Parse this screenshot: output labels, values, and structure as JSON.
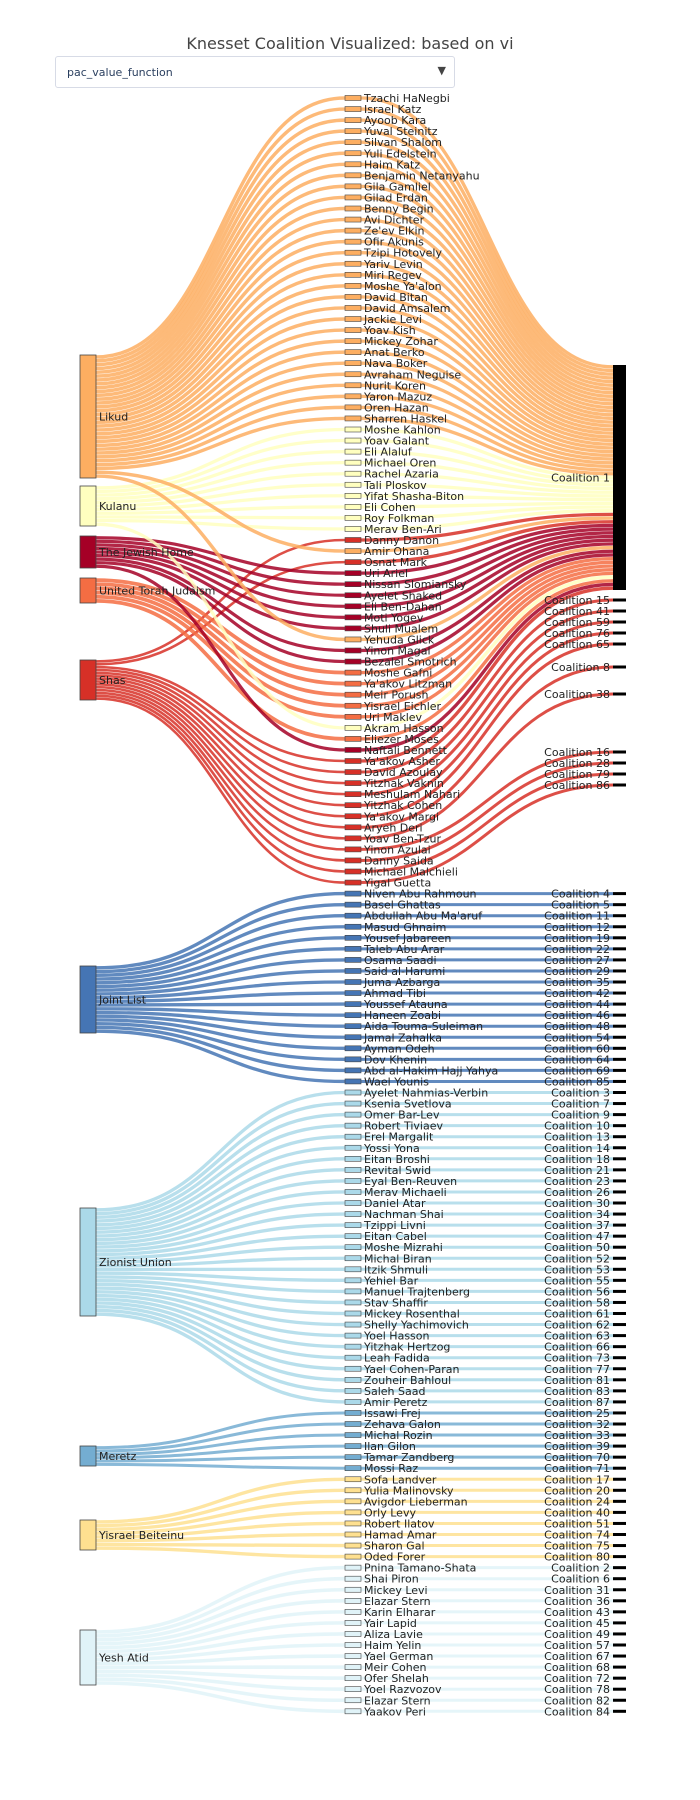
{
  "title": "Knesset Coalition Visualized: based on vi",
  "dropdown": {
    "selected": "pac_value_function"
  },
  "chart_data": {
    "type": "sankey",
    "parties": [
      {
        "name": "Likud",
        "color": "#fdae61",
        "members": [
          "Tzachi HaNegbi",
          "Israel Katz",
          "Ayoob Kara",
          "Yuval Steinitz",
          "Silvan Shalom",
          "Yuli Edelstein",
          "Haim Katz",
          "Benjamin Netanyahu",
          "Gila Gamliel",
          "Gilad Erdan",
          "Benny Begin",
          "Avi Dichter",
          "Ze'ev Elkin",
          "Ofir Akunis",
          "Tzipi Hotovely",
          "Yariv Levin",
          "Miri Regev",
          "Moshe Ya'alon",
          "David Bitan",
          "David Amsalem",
          "Jackie Levi",
          "Yoav Kish",
          "Mickey Zohar",
          "Anat Berko",
          "Nava Boker",
          "Avraham Neguise",
          "Nurit Koren",
          "Yaron Mazuz",
          "Oren Hazan",
          "Sharren Haskel",
          "Yehuda Glick",
          "Amir Ohana",
          "Avi Dichter"
        ]
      },
      {
        "name": "Kulanu",
        "color": "#ffffbf",
        "members": [
          "Moshe Kahlon",
          "Yoav Galant",
          "Eli Alaluf",
          "Michael Oren",
          "Rachel Azaria",
          "Tali Ploskov",
          "Yifat Shasha-Biton",
          "Eli Cohen",
          "Roy Folkman",
          "Merav Ben-Ari",
          "Akram Hasson"
        ]
      },
      {
        "name": "The Jewish Home",
        "color": "#a50026",
        "members": [
          "Uri Ariel",
          "Nissan Slomiansky",
          "Ayelet Shaked",
          "Eli Ben-Dahan",
          "Moti Yogev",
          "Shuli Mualem",
          "Yinon Magal",
          "Bezalel Smotrich",
          "Naftali Bennett"
        ]
      },
      {
        "name": "United Torah Judaism",
        "color": "#f46d43",
        "members": [
          "Moshe Gafni",
          "Ya'akov Litzman",
          "Meir Porush",
          "Yisrael Eichler",
          "Uri Maklev",
          "Eliezer Moses"
        ]
      },
      {
        "name": "Shas",
        "color": "#d73027",
        "members": [
          "Danny Danon",
          "Osnat Mark",
          "Ya'akov Asher",
          "David Azoulay",
          "Yitzhak Vaknin",
          "Meshulam Nahari",
          "Yitzhak Cohen",
          "Ya'akov Margi",
          "Aryeh Deri",
          "Yoav Ben-Tzur",
          "Yinon Azulai",
          "Danny Saida",
          "Michael Malchieli",
          "Yigal Guetta"
        ]
      },
      {
        "name": "Joint List",
        "color": "#4575b4",
        "members": [
          "Niven Abu Rahmoun",
          "Basel Ghattas",
          "Abdullah Abu Ma'aruf",
          "Masud Ghnaim",
          "Yousef Jabareen",
          "Taleb Abu Arar",
          "Osama Saadi",
          "Said al-Harumi",
          "Juma Azbarga",
          "Ahmad Tibi",
          "Youssef Atauna",
          "Haneen Zoabi",
          "Aida Touma-Suleiman",
          "Jamal Zahalka",
          "Ayman Odeh",
          "Dov Khenin",
          "Abd al-Hakim Hajj Yahya",
          "Wael Younis"
        ]
      },
      {
        "name": "Zionist Union",
        "color": "#abd9e9",
        "members": [
          "Ayelet Nahmias-Verbin",
          "Ksenia Svetlova",
          "Omer Bar-Lev",
          "Robert Tiviaev",
          "Erel Margalit",
          "Yossi Yona",
          "Eitan Broshi",
          "Revital Swid",
          "Eyal Ben-Reuven",
          "Merav Michaeli",
          "Daniel Atar",
          "Nachman Shai",
          "Tzippi Livni",
          "Eitan Cabel",
          "Moshe Mizrahi",
          "Michal Biran",
          "Itzik Shmuli",
          "Yehiel Bar",
          "Manuel Trajtenberg",
          "Stav Shaffir",
          "Mickey Rosenthal",
          "Shelly Yachimovich",
          "Yoel Hasson",
          "Yitzhak Hertzog",
          "Leah Fadida",
          "Yael Cohen-Paran",
          "Zouheir Bahloul",
          "Saleh Saad",
          "Amir Peretz"
        ]
      },
      {
        "name": "Meretz",
        "color": "#74add1",
        "members": [
          "Issawi Frej",
          "Zehava Galon",
          "Michal Rozin",
          "Ilan Gilon",
          "Tamar Zandberg",
          "Mossi Raz"
        ]
      },
      {
        "name": "Yisrael Beiteinu",
        "color": "#fee090",
        "members": [
          "Sofa Landver",
          "Yulia Malinovsky",
          "Avigdor Lieberman",
          "Orly Levy",
          "Robert Ilatov",
          "Hamad Amar",
          "Sharon Gal",
          "Oded Forer"
        ]
      },
      {
        "name": "Yesh Atid",
        "color": "#e0f3f8",
        "members": [
          "Pnina Tamano-Shata",
          "Shai Piron",
          "Mickey Levi",
          "Elazar Stern",
          "Karin Elharar",
          "Yair Lapid",
          "Aliza Lavie",
          "Haim Yelin",
          "Yael German",
          "Meir Cohen",
          "Ofer Shelah",
          "Yoel Razvozov",
          "Elazar Stern",
          "Yaakov Peri"
        ]
      }
    ],
    "members": [
      "Tzachi HaNegbi",
      "Israel Katz",
      "Ayoob Kara",
      "Yuval Steinitz",
      "Silvan Shalom",
      "Yuli Edelstein",
      "Haim Katz",
      "Benjamin Netanyahu",
      "Gila Gamliel",
      "Gilad Erdan",
      "Benny Begin",
      "Avi Dichter",
      "Ze'ev Elkin",
      "Ofir Akunis",
      "Tzipi Hotovely",
      "Yariv Levin",
      "Miri Regev",
      "Moshe Ya'alon",
      "David Bitan",
      "David Amsalem",
      "Jackie Levi",
      "Yoav Kish",
      "Mickey Zohar",
      "Anat Berko",
      "Nava Boker",
      "Avraham Neguise",
      "Nurit Koren",
      "Yaron Mazuz",
      "Oren Hazan",
      "Sharren Haskel",
      "Moshe Kahlon",
      "Yoav Galant",
      "Eli Alaluf",
      "Michael Oren",
      "Rachel Azaria",
      "Tali Ploskov",
      "Yifat Shasha-Biton",
      "Eli Cohen",
      "Roy Folkman",
      "Merav Ben-Ari",
      "Danny Danon",
      "Amir Ohana",
      "Osnat Mark",
      "Uri Ariel",
      "Nissan Slomiansky",
      "Ayelet Shaked",
      "Eli Ben-Dahan",
      "Moti Yogev",
      "Shuli Mualem",
      "Yehuda Glick",
      "Yinon Magal",
      "Bezalel Smotrich",
      "Moshe Gafni",
      "Ya'akov Litzman",
      "Meir Porush",
      "Yisrael Eichler",
      "Uri Maklev",
      "Akram Hasson",
      "Eliezer Moses",
      "Naftali Bennett",
      "Ya'akov Asher",
      "David Azoulay",
      "Yitzhak Vaknin",
      "Meshulam Nahari",
      "Yitzhak Cohen",
      "Ya'akov Margi",
      "Aryeh Deri",
      "Yoav Ben-Tzur",
      "Yinon Azulai",
      "Danny Saida",
      "Michael Malchieli",
      "Yigal Guetta",
      "Niven Abu Rahmoun",
      "Basel Ghattas",
      "Abdullah Abu Ma'aruf",
      "Masud Ghnaim",
      "Yousef Jabareen",
      "Taleb Abu Arar",
      "Osama Saadi",
      "Said al-Harumi",
      "Juma Azbarga",
      "Ahmad Tibi",
      "Youssef Atauna",
      "Haneen Zoabi",
      "Aida Touma-Suleiman",
      "Jamal Zahalka",
      "Ayman Odeh",
      "Dov Khenin",
      "Abd al-Hakim Hajj Yahya",
      "Wael Younis",
      "Ayelet Nahmias-Verbin",
      "Ksenia Svetlova",
      "Omer Bar-Lev",
      "Robert Tiviaev",
      "Erel Margalit",
      "Yossi Yona",
      "Eitan Broshi",
      "Revital Swid",
      "Eyal Ben-Reuven",
      "Merav Michaeli",
      "Daniel Atar",
      "Nachman Shai",
      "Tzippi Livni",
      "Eitan Cabel",
      "Moshe Mizrahi",
      "Michal Biran",
      "Itzik Shmuli",
      "Yehiel Bar",
      "Manuel Trajtenberg",
      "Stav Shaffir",
      "Mickey Rosenthal",
      "Shelly Yachimovich",
      "Yoel Hasson",
      "Yitzhak Hertzog",
      "Leah Fadida",
      "Yael Cohen-Paran",
      "Zouheir Bahloul",
      "Saleh Saad",
      "Amir Peretz",
      "Issawi Frej",
      "Zehava Galon",
      "Michal Rozin",
      "Ilan Gilon",
      "Tamar Zandberg",
      "Mossi Raz",
      "Sofa Landver",
      "Yulia Malinovsky",
      "Avigdor Lieberman",
      "Orly Levy",
      "Robert Ilatov",
      "Hamad Amar",
      "Sharon Gal",
      "Oded Forer",
      "Pnina Tamano-Shata",
      "Shai Piron",
      "Mickey Levi",
      "Elazar Stern",
      "Karin Elharar",
      "Yair Lapid",
      "Aliza Lavie",
      "Haim Yelin",
      "Yael German",
      "Meir Cohen",
      "Ofer Shelah",
      "Yoel Razvozov",
      "Elazar Stern",
      "Yaakov Peri"
    ],
    "coalitions": [
      {
        "name": "Coalition 1",
        "size": 61
      },
      {
        "name": "Coalition 15",
        "size": 1
      },
      {
        "name": "Coalition 41",
        "size": 1
      },
      {
        "name": "Coalition 59",
        "size": 1
      },
      {
        "name": "Coalition 76",
        "size": 1
      },
      {
        "name": "Coalition 65",
        "size": 1
      },
      {
        "name": "Coalition 8",
        "size": 1
      },
      {
        "name": "Coalition 38",
        "size": 1
      },
      {
        "name": "Coalition 16",
        "size": 1
      },
      {
        "name": "Coalition 28",
        "size": 1
      },
      {
        "name": "Coalition 79",
        "size": 1
      },
      {
        "name": "Coalition 86",
        "size": 1
      },
      {
        "name": "Coalition 4",
        "size": 1
      },
      {
        "name": "Coalition 5",
        "size": 1
      },
      {
        "name": "Coalition 11",
        "size": 1
      },
      {
        "name": "Coalition 12",
        "size": 1
      },
      {
        "name": "Coalition 19",
        "size": 1
      },
      {
        "name": "Coalition 22",
        "size": 1
      },
      {
        "name": "Coalition 27",
        "size": 1
      },
      {
        "name": "Coalition 29",
        "size": 1
      },
      {
        "name": "Coalition 35",
        "size": 1
      },
      {
        "name": "Coalition 42",
        "size": 1
      },
      {
        "name": "Coalition 44",
        "size": 1
      },
      {
        "name": "Coalition 46",
        "size": 1
      },
      {
        "name": "Coalition 48",
        "size": 1
      },
      {
        "name": "Coalition 54",
        "size": 1
      },
      {
        "name": "Coalition 60",
        "size": 1
      },
      {
        "name": "Coalition 64",
        "size": 1
      },
      {
        "name": "Coalition 69",
        "size": 1
      },
      {
        "name": "Coalition 85",
        "size": 1
      },
      {
        "name": "Coalition 3",
        "size": 1
      },
      {
        "name": "Coalition 7",
        "size": 1
      },
      {
        "name": "Coalition 9",
        "size": 1
      },
      {
        "name": "Coalition 10",
        "size": 1
      },
      {
        "name": "Coalition 13",
        "size": 1
      },
      {
        "name": "Coalition 14",
        "size": 1
      },
      {
        "name": "Coalition 18",
        "size": 1
      },
      {
        "name": "Coalition 21",
        "size": 1
      },
      {
        "name": "Coalition 23",
        "size": 1
      },
      {
        "name": "Coalition 26",
        "size": 1
      },
      {
        "name": "Coalition 30",
        "size": 1
      },
      {
        "name": "Coalition 34",
        "size": 1
      },
      {
        "name": "Coalition 37",
        "size": 1
      },
      {
        "name": "Coalition 47",
        "size": 1
      },
      {
        "name": "Coalition 50",
        "size": 1
      },
      {
        "name": "Coalition 52",
        "size": 1
      },
      {
        "name": "Coalition 53",
        "size": 1
      },
      {
        "name": "Coalition 55",
        "size": 1
      },
      {
        "name": "Coalition 56",
        "size": 1
      },
      {
        "name": "Coalition 58",
        "size": 1
      },
      {
        "name": "Coalition 61",
        "size": 1
      },
      {
        "name": "Coalition 62",
        "size": 1
      },
      {
        "name": "Coalition 63",
        "size": 1
      },
      {
        "name": "Coalition 66",
        "size": 1
      },
      {
        "name": "Coalition 73",
        "size": 1
      },
      {
        "name": "Coalition 77",
        "size": 1
      },
      {
        "name": "Coalition 81",
        "size": 1
      },
      {
        "name": "Coalition 83",
        "size": 1
      },
      {
        "name": "Coalition 87",
        "size": 1
      },
      {
        "name": "Coalition 25",
        "size": 1
      },
      {
        "name": "Coalition 32",
        "size": 1
      },
      {
        "name": "Coalition 33",
        "size": 1
      },
      {
        "name": "Coalition 39",
        "size": 1
      },
      {
        "name": "Coalition 70",
        "size": 1
      },
      {
        "name": "Coalition 71",
        "size": 1
      },
      {
        "name": "Coalition 17",
        "size": 1
      },
      {
        "name": "Coalition 20",
        "size": 1
      },
      {
        "name": "Coalition 24",
        "size": 1
      },
      {
        "name": "Coalition 40",
        "size": 1
      },
      {
        "name": "Coalition 51",
        "size": 1
      },
      {
        "name": "Coalition 74",
        "size": 1
      },
      {
        "name": "Coalition 75",
        "size": 1
      },
      {
        "name": "Coalition 80",
        "size": 1
      },
      {
        "name": "Coalition 2",
        "size": 1
      },
      {
        "name": "Coalition 6",
        "size": 1
      },
      {
        "name": "Coalition 31",
        "size": 1
      },
      {
        "name": "Coalition 36",
        "size": 1
      },
      {
        "name": "Coalition 43",
        "size": 1
      },
      {
        "name": "Coalition 45",
        "size": 1
      },
      {
        "name": "Coalition 49",
        "size": 1
      },
      {
        "name": "Coalition 57",
        "size": 1
      },
      {
        "name": "Coalition 67",
        "size": 1
      },
      {
        "name": "Coalition 68",
        "size": 1
      },
      {
        "name": "Coalition 72",
        "size": 1
      },
      {
        "name": "Coalition 78",
        "size": 1
      },
      {
        "name": "Coalition 82",
        "size": 1
      },
      {
        "name": "Coalition 84",
        "size": 1
      }
    ]
  }
}
